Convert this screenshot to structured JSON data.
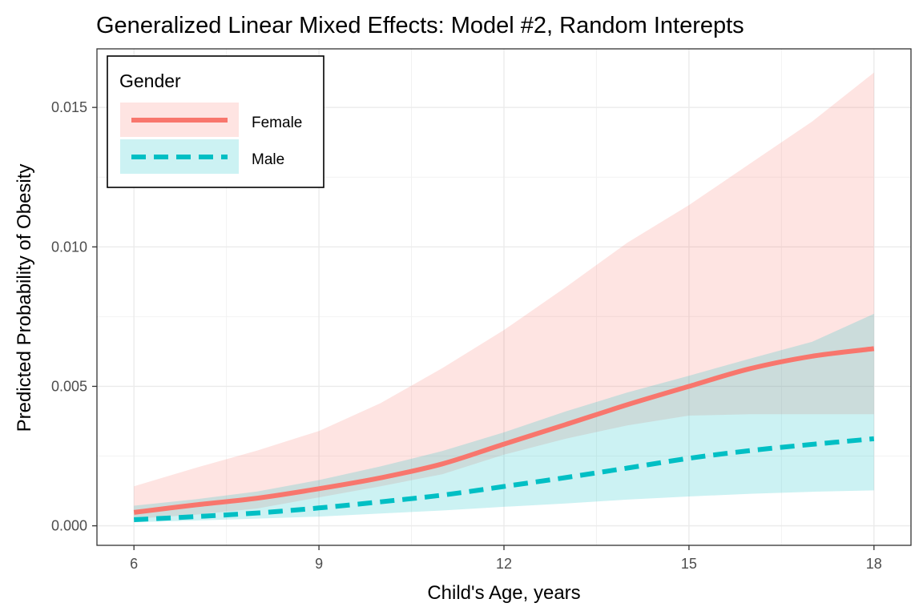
{
  "chart_data": {
    "type": "line",
    "title": "Generalized Linear Mixed Effects: Model #2, Random Interepts",
    "xlabel": "Child's Age, years",
    "ylabel": "Predicted Probability of Obesity",
    "xlim": [
      5.4,
      18.6
    ],
    "ylim": [
      -0.0007,
      0.0171
    ],
    "x_ticks": [
      6,
      9,
      12,
      15,
      18
    ],
    "x_tick_labels": [
      "6",
      "9",
      "12",
      "15",
      "18"
    ],
    "y_ticks": [
      0.0,
      0.005,
      0.01,
      0.015
    ],
    "y_tick_labels": [
      "0.000",
      "0.005",
      "0.010",
      "0.015"
    ],
    "grid": true,
    "legend": {
      "title": "Gender",
      "position": "top-left",
      "entries": [
        "Female",
        "Male"
      ]
    },
    "x": [
      6,
      7,
      8,
      9,
      10,
      11,
      12,
      13,
      14,
      15,
      16,
      17,
      18
    ],
    "series": [
      {
        "name": "Female",
        "color": "#F8766D",
        "line_style": "solid",
        "values": [
          0.00048,
          0.00075,
          0.00099,
          0.00133,
          0.00172,
          0.00222,
          0.00293,
          0.00363,
          0.00434,
          0.005,
          0.00564,
          0.00608,
          0.00635
        ],
        "lower": [
          0.00025,
          0.0004,
          0.00062,
          0.00102,
          0.00142,
          0.00185,
          0.00255,
          0.00312,
          0.0036,
          0.00395,
          0.004,
          0.004,
          0.004
        ],
        "upper": [
          0.00142,
          0.00208,
          0.0027,
          0.0034,
          0.0044,
          0.00565,
          0.00702,
          0.00855,
          0.01015,
          0.0115,
          0.013,
          0.0145,
          0.01625
        ]
      },
      {
        "name": "Male",
        "color": "#00BFC4",
        "line_style": "dashed",
        "values": [
          0.00022,
          0.00033,
          0.00046,
          0.00064,
          0.00086,
          0.0011,
          0.00141,
          0.00173,
          0.00207,
          0.00242,
          0.0027,
          0.00292,
          0.00312
        ],
        "lower": [
          0.00013,
          0.00019,
          0.00026,
          0.00033,
          0.00044,
          0.00055,
          0.00068,
          0.0008,
          0.00094,
          0.00105,
          0.00115,
          0.00122,
          0.00127
        ],
        "upper": [
          0.00072,
          0.00095,
          0.00123,
          0.00164,
          0.00213,
          0.00268,
          0.00335,
          0.0041,
          0.00478,
          0.00538,
          0.006,
          0.0066,
          0.0076
        ]
      }
    ]
  }
}
